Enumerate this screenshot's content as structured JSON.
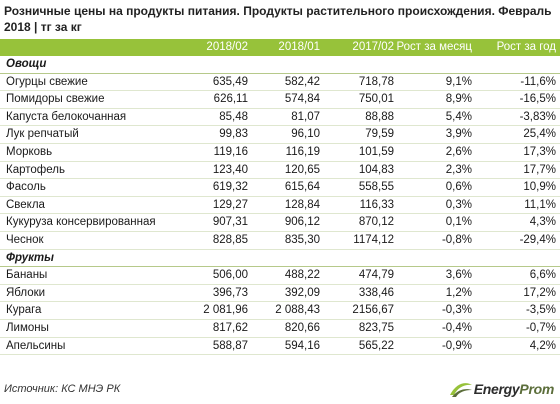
{
  "title": "Розничные цены на продукты питания. Продукты растительного происхождения. Февраль 2018 | тг за кг",
  "header": {
    "c1": "2018/02",
    "c2": "2018/01",
    "c3": "2017/02",
    "c4": "Рост за месяц",
    "c5": "Рост за год"
  },
  "sections": [
    {
      "label": "Овощи",
      "rows": [
        {
          "name": "Огурцы свежие",
          "c1": "635,49",
          "c2": "582,42",
          "c3": "718,78",
          "c4": "9,1%",
          "c5": "-11,6%"
        },
        {
          "name": "Помидоры свежие",
          "c1": "626,11",
          "c2": "574,84",
          "c3": "750,01",
          "c4": "8,9%",
          "c5": "-16,5%"
        },
        {
          "name": "Капуста белокочанная",
          "c1": "85,48",
          "c2": "81,07",
          "c3": "88,88",
          "c4": "5,4%",
          "c5": "-3,83%"
        },
        {
          "name": "Лук репчатый",
          "c1": "99,83",
          "c2": "96,10",
          "c3": "79,59",
          "c4": "3,9%",
          "c5": "25,4%"
        },
        {
          "name": "Морковь",
          "c1": "119,16",
          "c2": "116,19",
          "c3": "101,59",
          "c4": "2,6%",
          "c5": "17,3%"
        },
        {
          "name": "Картофель",
          "c1": "123,40",
          "c2": "120,65",
          "c3": "104,83",
          "c4": "2,3%",
          "c5": "17,7%"
        },
        {
          "name": "Фасоль",
          "c1": "619,32",
          "c2": "615,64",
          "c3": "558,55",
          "c4": "0,6%",
          "c5": "10,9%"
        },
        {
          "name": "Свекла",
          "c1": "129,27",
          "c2": "128,84",
          "c3": "116,33",
          "c4": "0,3%",
          "c5": "11,1%"
        },
        {
          "name": "Кукуруза консервированная",
          "c1": "907,31",
          "c2": "906,12",
          "c3": "870,12",
          "c4": "0,1%",
          "c5": "4,3%"
        },
        {
          "name": "Чеснок",
          "c1": "828,85",
          "c2": "835,30",
          "c3": "1174,12",
          "c4": "-0,8%",
          "c5": "-29,4%"
        }
      ]
    },
    {
      "label": "Фрукты",
      "rows": [
        {
          "name": "Бананы",
          "c1": "506,00",
          "c2": "488,22",
          "c3": "474,79",
          "c4": "3,6%",
          "c5": "6,6%"
        },
        {
          "name": "Яблоки",
          "c1": "396,73",
          "c2": "392,09",
          "c3": "338,46",
          "c4": "1,2%",
          "c5": "17,2%"
        },
        {
          "name": "Курага",
          "c1": "2 081,96",
          "c2": "2 088,43",
          "c3": "2156,67",
          "c4": "-0,3%",
          "c5": "-3,5%"
        },
        {
          "name": "Лимоны",
          "c1": "817,62",
          "c2": "820,66",
          "c3": "823,75",
          "c4": "-0,4%",
          "c5": "-0,7%"
        },
        {
          "name": "Апельсины",
          "c1": "588,87",
          "c2": "594,16",
          "c3": "565,22",
          "c4": "-0,9%",
          "c5": "4,2%"
        }
      ]
    }
  ],
  "footer": {
    "source": "Источник: КС МНЭ РК"
  },
  "logo": {
    "word_a": "Energy",
    "word_b": "Prom",
    "icon": "swoosh-logo-icon",
    "colors": {
      "green": "#97c23a",
      "dark": "#2d2d2d"
    }
  }
}
